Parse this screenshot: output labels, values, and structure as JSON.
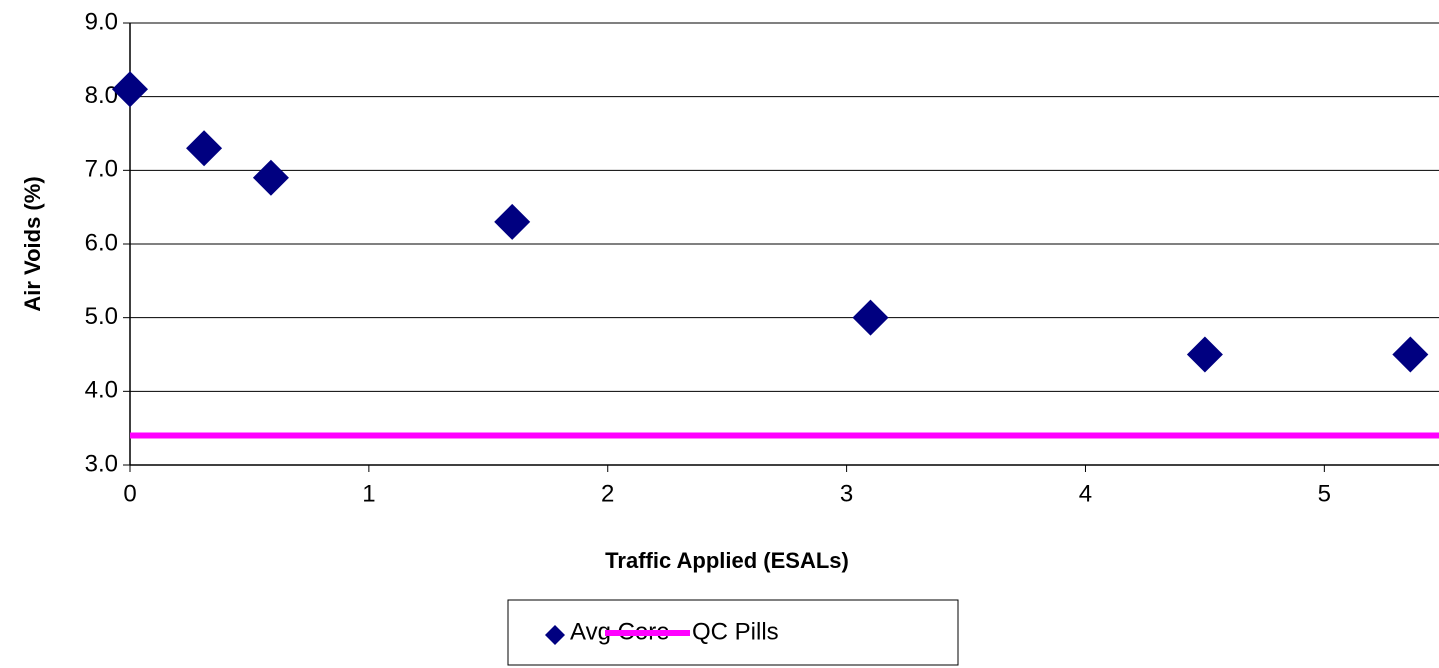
{
  "chart_data": {
    "type": "scatter",
    "xlabel": "Traffic Applied (ESALs)",
    "ylabel": "Air Voids (%)",
    "xlim": [
      0,
      5.48
    ],
    "xticks": [
      0,
      1,
      2,
      3,
      4,
      5
    ],
    "ylim": [
      3,
      9
    ],
    "yticks": [
      {
        "value": 3,
        "label": "3.0"
      },
      {
        "value": 4,
        "label": "4.0"
      },
      {
        "value": 5,
        "label": "5.0"
      },
      {
        "value": 6,
        "label": "6.0"
      },
      {
        "value": 7,
        "label": "7.0"
      },
      {
        "value": 8,
        "label": "8.0"
      },
      {
        "value": 9,
        "label": "9.0"
      }
    ],
    "grid": true,
    "legend": "bottom",
    "series": [
      {
        "name": "Avg Core",
        "color": "#000080",
        "marker": "diamond",
        "x": [
          0,
          0.31,
          0.59,
          1.6,
          3.1,
          4.5,
          5.36
        ],
        "values": [
          8.1,
          7.3,
          6.9,
          6.3,
          5.0,
          4.5,
          4.5
        ]
      },
      {
        "name": "QC Pills",
        "color": "#ff00ff",
        "marker": "line",
        "x": [
          0,
          5.48
        ],
        "values": [
          3.4,
          3.4
        ]
      }
    ]
  }
}
